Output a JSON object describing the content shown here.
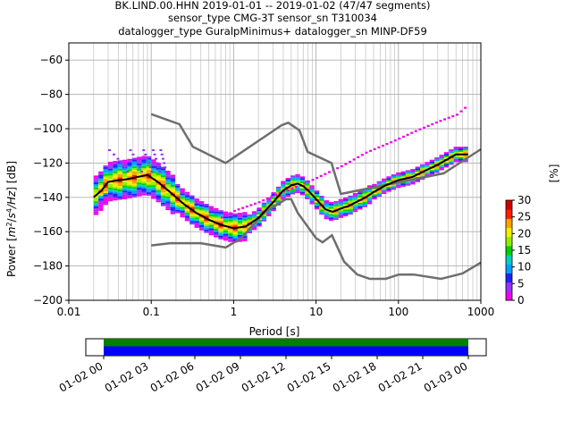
{
  "chart_data": {
    "type": "heatmap",
    "title_lines": [
      "BK.LIND.00.HHN   2019-01-01 -- 2019-01-02  (47/47 segments)",
      "sensor_type CMG-3T sensor_sn T310034",
      "datalogger_type GuralpMinimus+ datalogger_sn MINP-DF59"
    ],
    "xlabel": "Period [s]",
    "ylabel_parts": [
      "Power [",
      "m",
      "2",
      "/",
      "s",
      "4",
      "/Hz",
      "] [dB]"
    ],
    "xscale": "log",
    "xlim": [
      0.01,
      1000
    ],
    "ylim": [
      -200,
      -50
    ],
    "xticks": [
      {
        "value": 0.01,
        "label": "0.01"
      },
      {
        "value": 0.1,
        "label": "0.1"
      },
      {
        "value": 1,
        "label": "1"
      },
      {
        "value": 10,
        "label": "10"
      },
      {
        "value": 100,
        "label": "100"
      },
      {
        "value": 1000,
        "label": "1000"
      }
    ],
    "yticks": [
      {
        "value": -60,
        "label": "−60"
      },
      {
        "value": -80,
        "label": "−80"
      },
      {
        "value": -100,
        "label": "−100"
      },
      {
        "value": -120,
        "label": "−120"
      },
      {
        "value": -140,
        "label": "−140"
      },
      {
        "value": -160,
        "label": "−160"
      },
      {
        "value": -180,
        "label": "−180"
      },
      {
        "value": -200,
        "label": "−200"
      }
    ],
    "grid": true,
    "nhnm": {
      "x": [
        0.1,
        0.22,
        0.32,
        0.8,
        3.8,
        4.6,
        6.3,
        7.9,
        15.4,
        20,
        354.8,
        1000
      ],
      "y": [
        -91.5,
        -97.4,
        -110.5,
        -120,
        -98,
        -96.5,
        -101,
        -113.5,
        -120,
        -138,
        -126,
        -112
      ]
    },
    "nlnm": {
      "x": [
        0.1,
        0.17,
        0.4,
        0.8,
        1.24,
        2.4,
        4.3,
        5,
        6,
        10,
        12,
        15.6,
        21.9,
        31.6,
        45,
        70,
        101,
        154,
        328,
        600,
        1000
      ],
      "y": [
        -168,
        -166.7,
        -166.7,
        -169.2,
        -163.7,
        -148.6,
        -141.1,
        -141.1,
        -149,
        -163.8,
        -166.2,
        -162.1,
        -177.5,
        -185,
        -187.5,
        -187.5,
        -185,
        -185,
        -187.5,
        -184.4,
        -178
      ]
    },
    "mode": {
      "x": [
        0.02,
        0.025,
        0.03,
        0.04,
        0.05,
        0.07,
        0.09,
        0.12,
        0.17,
        0.25,
        0.35,
        0.5,
        0.7,
        1,
        1.4,
        2,
        3,
        4,
        5,
        6,
        7,
        8,
        10,
        13,
        16,
        20,
        25,
        30,
        40,
        50,
        70,
        100,
        150,
        200,
        300,
        500,
        700
      ],
      "y": [
        -140,
        -136,
        -131,
        -130,
        -129.5,
        -128,
        -127,
        -131,
        -137,
        -144,
        -149,
        -153,
        -156,
        -158,
        -157,
        -152,
        -143,
        -136,
        -133,
        -132,
        -133.5,
        -136,
        -141,
        -147,
        -148.5,
        -146.5,
        -145,
        -143,
        -140,
        -137,
        -133,
        -130,
        -128,
        -125,
        -121,
        -115,
        -115
      ]
    },
    "histogram": {
      "colors": [
        "#f000f0",
        "#9b30ff",
        "#2020ff",
        "#00a0ff",
        "#00d0c0",
        "#00d000",
        "#90ee00",
        "#f0f000",
        "#ffa000",
        "#ff2000",
        "#d00000"
      ],
      "max_percent": 30,
      "colorbar_label": "[%]",
      "colorbar_ticks": [
        {
          "value": 0,
          "label": "0"
        },
        {
          "value": 5,
          "label": "5"
        },
        {
          "value": 10,
          "label": "10"
        },
        {
          "value": 15,
          "label": "15"
        },
        {
          "value": 20,
          "label": "20"
        },
        {
          "value": 25,
          "label": "25"
        },
        {
          "value": 30,
          "label": "30"
        }
      ]
    },
    "high_trace": {
      "x": [
        0.7,
        1,
        2,
        3,
        5,
        8,
        12,
        20,
        40,
        80,
        150,
        300,
        500,
        700
      ],
      "y": [
        -152,
        -148,
        -143,
        -139,
        -135,
        -131,
        -127,
        -122,
        -114,
        -108,
        -102,
        -96,
        -92,
        -86
      ]
    },
    "timeline": {
      "tick_labels": [
        "01-02 00",
        "01-02 03",
        "01-02 06",
        "01-02 09",
        "01-02 12",
        "01-02 15",
        "01-02 18",
        "01-02 21",
        "01-03 00"
      ],
      "bar_colors": {
        "top": "#008000",
        "bottom": "#0000ff"
      }
    }
  }
}
